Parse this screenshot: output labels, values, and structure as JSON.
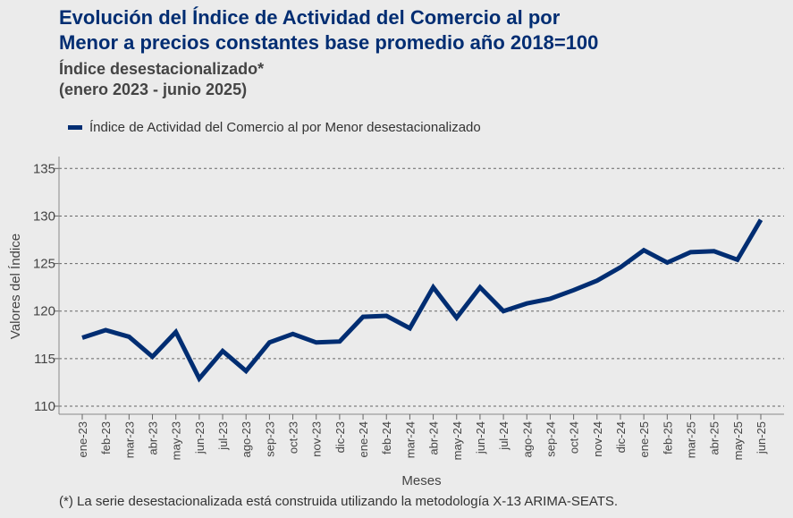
{
  "title_line1": "Evolución del Índice de Actividad del Comercio al por",
  "title_line2": "Menor a precios constantes base promedio año 2018=100",
  "subtitle_line1": "Índice desestacionalizado*",
  "subtitle_line2": "(enero 2023 - junio 2025)",
  "footnote": "(*)  La serie desestacionalizada está construida utilizando la metodología X-13 ARIMA-SEATS.",
  "chart_data": {
    "type": "line",
    "xlabel": "Meses",
    "ylabel": "Valores del Índice",
    "ylim": [
      110,
      135
    ],
    "yticks": [
      110,
      115,
      120,
      125,
      130,
      135
    ],
    "grid": "horizontal dashed",
    "legend_position": "top-left",
    "categories": [
      "ene-23",
      "feb-23",
      "mar-23",
      "abr-23",
      "may-23",
      "jun-23",
      "jul-23",
      "ago-23",
      "sep-23",
      "oct-23",
      "nov-23",
      "dic-23",
      "ene-24",
      "feb-24",
      "mar-24",
      "abr-24",
      "may-24",
      "jun-24",
      "jul-24",
      "ago-24",
      "sep-24",
      "oct-24",
      "nov-24",
      "dic-24",
      "ene-25",
      "feb-25",
      "mar-25",
      "abr-25",
      "may-25",
      "jun-25"
    ],
    "series": [
      {
        "name": "Índice de Actividad del Comercio al por Menor desestacionalizado",
        "color": "#002d72",
        "values": [
          117.2,
          118.0,
          117.3,
          115.2,
          117.8,
          112.9,
          115.8,
          113.7,
          116.7,
          117.6,
          116.7,
          116.8,
          119.4,
          119.5,
          118.2,
          122.5,
          119.3,
          122.5,
          120.0,
          120.8,
          121.3,
          122.2,
          123.2,
          124.6,
          126.4,
          125.1,
          126.2,
          126.3,
          125.4,
          129.6
        ]
      }
    ]
  }
}
